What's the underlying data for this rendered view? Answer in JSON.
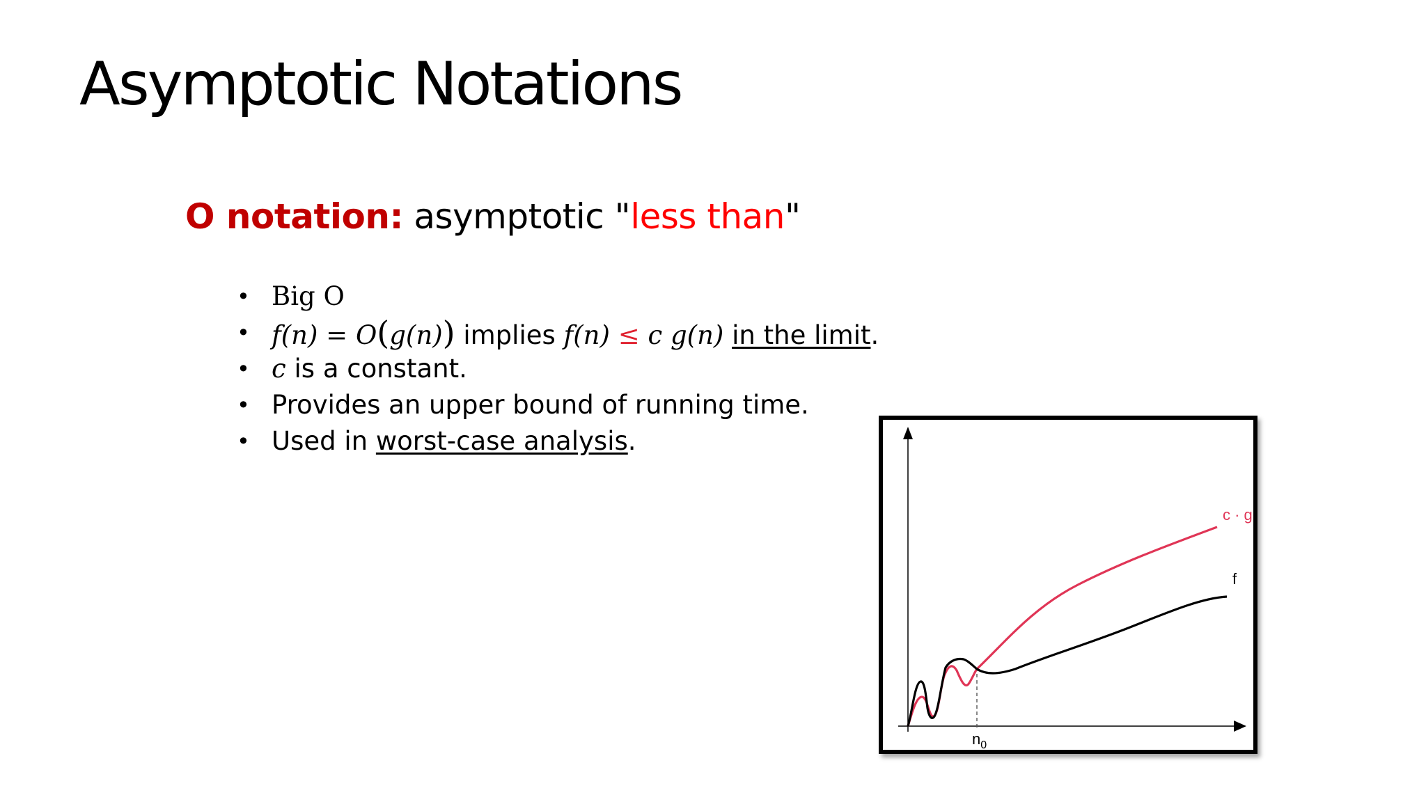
{
  "slide": {
    "title": "Asymptotic Notations",
    "subtitle": {
      "keyword": "O notation:",
      "text_before": " asymptotic \"",
      "highlight": "less than",
      "text_after": "\""
    },
    "bullets": [
      {
        "text": "Big O"
      },
      {
        "lhs": "f(n)",
        "eq": "=",
        "rhs_o": "O",
        "rhs_inner": "g(n)",
        "middle": " implies ",
        "lhs2": "f(n)",
        "leq": "≤",
        "rhs2": "c g(n)",
        "underlined": "in the limit",
        "end": "."
      },
      {
        "var": "c",
        "text": " is a constant."
      },
      {
        "text": "Provides an upper bound of running time."
      },
      {
        "prefix": "Used in ",
        "underlined": "worst-case analysis",
        "end": "."
      }
    ]
  },
  "figure": {
    "labels": {
      "cg": "c · g",
      "f": "f",
      "n0": "n",
      "n0_sub": "0"
    },
    "colors": {
      "cg": "#e03556",
      "f": "#000000",
      "axes": "#000000"
    },
    "icons": [
      "arrow-up-icon",
      "arrow-right-icon"
    ]
  }
}
